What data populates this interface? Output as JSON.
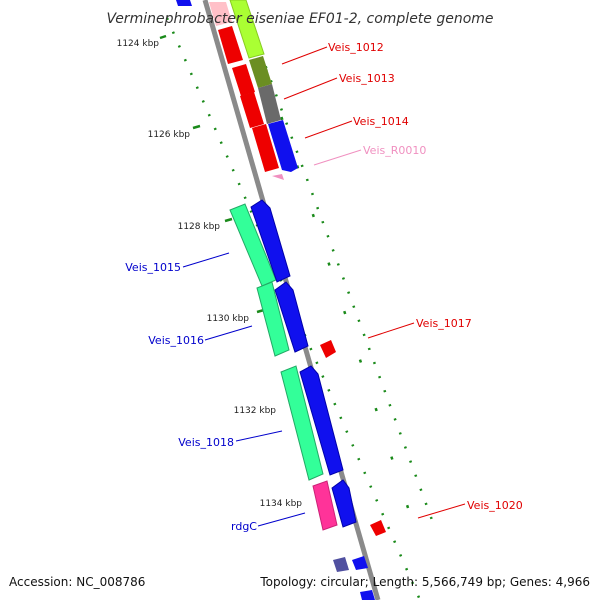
{
  "title": "Verminephrobacter eiseniae EF01-2, complete genome",
  "footer": {
    "accession": "Accession: NC_008786",
    "summary": "Topology: circular; Length: 5,566,749 bp; Genes: 4,966"
  },
  "colors": {
    "backbone": "#8a8a8a",
    "tick": "#1a8a1a",
    "label_red": "#e00000",
    "label_blue": "#0000cc",
    "label_pink": "#f090c0",
    "gene_red": "#ee0000",
    "gene_blue": "#1010ee",
    "gene_seagreen": "#33ff99",
    "gene_lime": "#aaff33",
    "gene_olive": "#6b8e23",
    "gene_gray": "#6a6a6a",
    "gene_pink": "#ff3399",
    "gene_lightpink": "#ffc0c8"
  },
  "scale_labels": [
    "1124 kbp",
    "1126 kbp",
    "1128 kbp",
    "1130 kbp",
    "1132 kbp",
    "1134 kbp"
  ],
  "gene_labels": [
    {
      "name": "Veis_1012",
      "side": "right",
      "color": "label_red"
    },
    {
      "name": "Veis_1013",
      "side": "right",
      "color": "label_red"
    },
    {
      "name": "Veis_1014",
      "side": "right",
      "color": "label_red"
    },
    {
      "name": "Veis_R0010",
      "side": "right",
      "color": "label_pink"
    },
    {
      "name": "Veis_1015",
      "side": "left",
      "color": "label_blue"
    },
    {
      "name": "Veis_1017",
      "side": "right",
      "color": "label_red"
    },
    {
      "name": "Veis_1016",
      "side": "left",
      "color": "label_blue"
    },
    {
      "name": "Veis_1018",
      "side": "left",
      "color": "label_blue"
    },
    {
      "name": "Veis_1020",
      "side": "right",
      "color": "label_red"
    },
    {
      "name": "rdgC",
      "side": "left",
      "color": "label_blue"
    }
  ]
}
